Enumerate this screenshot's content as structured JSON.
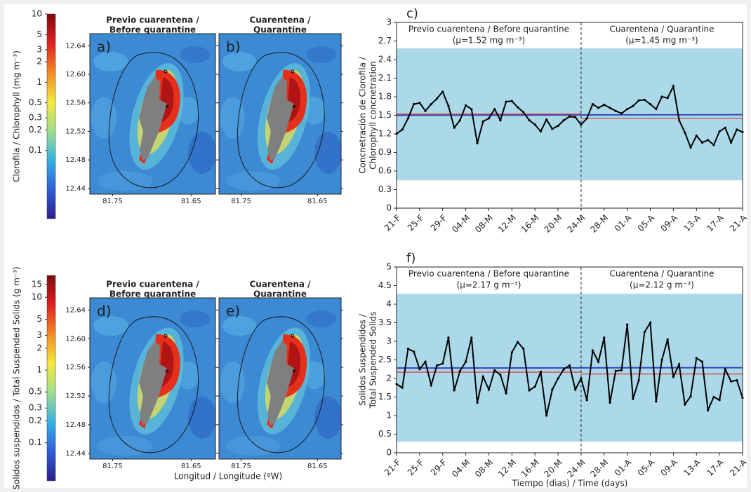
{
  "chart_data": [
    {
      "type": "map",
      "colorbar": {
        "label": "Clorofila / Chlorophyll (mg m⁻³)",
        "scale": "log",
        "lim": [
          0.01,
          10
        ],
        "ticks": [
          0.1,
          0.2,
          0.3,
          0.5,
          1,
          2,
          3,
          5,
          10
        ],
        "colors": [
          "#2b1e8e",
          "#2f5fd8",
          "#35b2e8",
          "#9ee08a",
          "#f5e83a",
          "#f28a24",
          "#e02020",
          "#7e0a0a"
        ]
      },
      "panels": [
        {
          "label": "a)",
          "title": [
            "Previo cuarentena /",
            "Before quarantine"
          ]
        },
        {
          "label": "b)",
          "title": [
            "Cuarentena /",
            "Quarantine"
          ]
        }
      ],
      "ylim": [
        12.432,
        12.657
      ],
      "yticks": [
        12.44,
        12.48,
        12.52,
        12.56,
        {
          "value": 12.6,
          "label": "12.60"
        },
        12.64
      ],
      "xlim": [
        81.779,
        81.619
      ],
      "xticks": [
        81.75,
        81.65
      ]
    },
    {
      "type": "line",
      "panel": "c)",
      "ylabel": [
        "Concnetración de Clorofila /",
        "Chlorophyll concnetration"
      ],
      "categories": [
        "21-F",
        null,
        null,
        null,
        "25-F",
        null,
        null,
        null,
        "29-F",
        null,
        null,
        null,
        "04-M",
        null,
        null,
        null,
        "08-M",
        null,
        null,
        null,
        "12-M",
        null,
        null,
        null,
        "16-M",
        null,
        null,
        null,
        "20-M",
        null,
        null,
        null,
        "24-M",
        null,
        null,
        null,
        "28-M",
        null,
        null,
        null,
        "01-A",
        null,
        null,
        null,
        "05-A",
        null,
        null,
        null,
        "09-A",
        null,
        null,
        null,
        "13-A",
        null,
        null,
        null,
        "17-A",
        null,
        null,
        null,
        "21-A"
      ],
      "values": [
        1.2,
        1.27,
        1.45,
        1.68,
        1.7,
        1.57,
        1.68,
        1.77,
        1.88,
        1.65,
        1.3,
        1.42,
        1.66,
        1.6,
        1.05,
        1.4,
        1.45,
        1.6,
        1.42,
        1.72,
        1.73,
        1.63,
        1.55,
        1.42,
        1.35,
        1.24,
        1.43,
        1.28,
        1.33,
        1.42,
        1.48,
        1.47,
        1.35,
        1.45,
        1.68,
        1.62,
        1.67,
        1.62,
        1.57,
        1.53,
        1.6,
        1.65,
        1.74,
        1.75,
        1.68,
        1.6,
        1.8,
        1.78,
        1.97,
        1.42,
        1.22,
        0.98,
        1.17,
        1.06,
        1.1,
        1.02,
        1.24,
        1.3,
        1.06,
        1.27,
        1.23
      ],
      "color": "#000000",
      "band": [
        0.45,
        2.58
      ],
      "band_color": "#abd9e9",
      "trend": [
        1.5,
        1.51
      ],
      "trend_color": "#3248b8",
      "mean_color": "#e83030",
      "periods": [
        {
          "title": "Previo cuarentena / Before quarantine",
          "mean_label": "(μ=1.52 mg m⁻³)",
          "mean": 1.52,
          "from": 0,
          "to": 32
        },
        {
          "title": "Cuarentena / Quarantine",
          "mean_label": "(μ=1.45 mg m⁻³)",
          "mean": 1.45,
          "from": 32,
          "to": 60
        }
      ],
      "ylim": [
        0,
        3
      ],
      "yticks": [
        0,
        0.3,
        0.6,
        0.9,
        1.2,
        1.5,
        1.8,
        2.1,
        2.4,
        2.7,
        3
      ]
    },
    {
      "type": "map",
      "colorbar": {
        "label": "Solidos suspendidos / Total Suspended Solids (g m⁻³)",
        "scale": "log",
        "lim": [
          0.03,
          20
        ],
        "ticks": [
          0.1,
          0.2,
          0.3,
          0.5,
          1,
          2,
          3,
          5,
          10,
          15
        ],
        "colors": [
          "#2b1e8e",
          "#2f5fd8",
          "#35b2e8",
          "#9ee08a",
          "#f5e83a",
          "#f28a24",
          "#e02020",
          "#7e0a0a"
        ]
      },
      "panels": [
        {
          "label": "d)",
          "title": [
            "Previo cuarentena /",
            "Before quarantine"
          ]
        },
        {
          "label": "e)",
          "title": [
            "Cuarentena /",
            "Quarantine"
          ]
        }
      ],
      "ylim": [
        12.432,
        12.657
      ],
      "yticks": [
        12.44,
        12.48,
        12.52,
        12.56,
        {
          "value": 12.6,
          "label": "12.60"
        },
        12.64
      ],
      "xlim": [
        81.779,
        81.619
      ],
      "xticks": [
        81.75,
        81.65
      ],
      "xlabel": "Longitud / Longitude (ºW)"
    },
    {
      "type": "line",
      "panel": "f)",
      "ylabel": [
        "Solidos Suspendidos /",
        "Total Suspended Solids"
      ],
      "xlabel": "Tiempo (dias) / Time (days)",
      "categories": [
        "21-F",
        null,
        null,
        null,
        "25-F",
        null,
        null,
        null,
        "29-F",
        null,
        null,
        null,
        "04-M",
        null,
        null,
        null,
        "08-M",
        null,
        null,
        null,
        "12-M",
        null,
        null,
        null,
        "16-M",
        null,
        null,
        null,
        "20-M",
        null,
        null,
        null,
        "24-M",
        null,
        null,
        null,
        "28-M",
        null,
        null,
        null,
        "01-A",
        null,
        null,
        null,
        "05-A",
        null,
        null,
        null,
        "09-A",
        null,
        null,
        null,
        "13-A",
        null,
        null,
        null,
        "17-A",
        null,
        null,
        null,
        "21-A"
      ],
      "values": [
        1.85,
        1.75,
        2.8,
        2.72,
        2.25,
        2.45,
        1.82,
        2.35,
        2.4,
        3.1,
        1.68,
        2.2,
        2.45,
        3.1,
        1.35,
        2.05,
        1.7,
        2.22,
        2.1,
        1.6,
        2.7,
        2.98,
        2.8,
        1.68,
        1.78,
        2.18,
        1.0,
        1.7,
        2.0,
        2.25,
        2.35,
        1.7,
        2.0,
        1.42,
        2.75,
        2.45,
        3.1,
        1.35,
        2.2,
        2.22,
        3.45,
        1.45,
        1.95,
        3.25,
        3.5,
        1.38,
        2.5,
        3.05,
        2.05,
        2.38,
        1.3,
        1.52,
        2.55,
        2.45,
        1.15,
        1.5,
        1.42,
        2.25,
        1.92,
        1.95,
        1.48
      ],
      "color": "#000000",
      "band": [
        0.3,
        4.28
      ],
      "band_color": "#abd9e9",
      "trend": [
        2.28,
        2.29
      ],
      "trend_color": "#3248b8",
      "mean_color": "#e83030",
      "periods": [
        {
          "title": "Previo cuarentena / Before quarantine",
          "mean_label": "(μ=2.17 g m⁻³)",
          "mean": 2.17,
          "from": 0,
          "to": 32
        },
        {
          "title": "Cuarentena / Quarantine",
          "mean_label": "(μ=2.12 g m⁻³)",
          "mean": 2.12,
          "from": 32,
          "to": 60
        }
      ],
      "ylim": [
        0,
        5
      ],
      "yticks": [
        0,
        0.5,
        1,
        1.5,
        2,
        2.5,
        3,
        3.5,
        4,
        4.5,
        5
      ]
    }
  ]
}
